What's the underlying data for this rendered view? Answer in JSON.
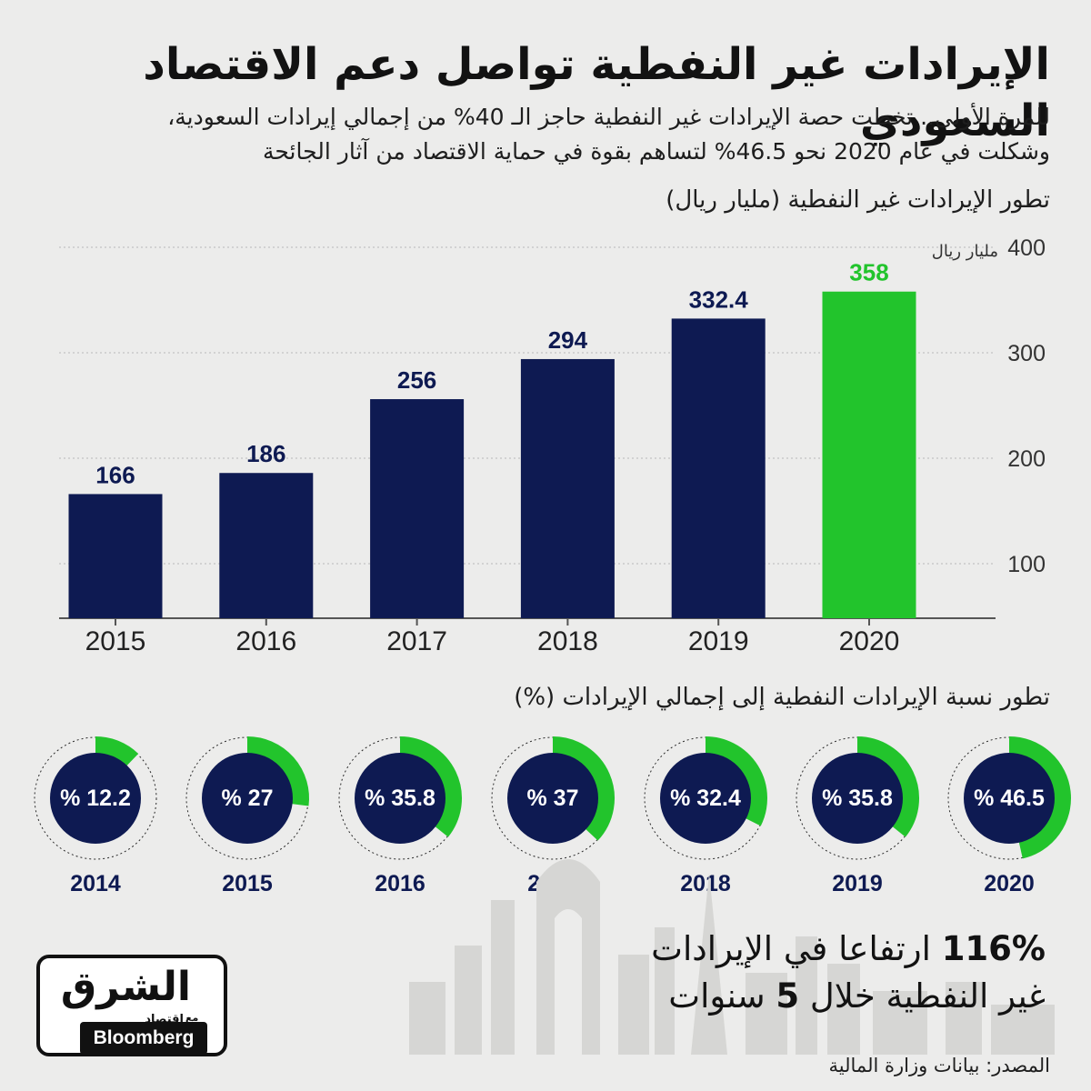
{
  "header": {
    "title": "الإيرادات غير النفطية تواصل دعم الاقتصاد السعودي",
    "subtitle_line1": "للمرة الأولى.. تخطت حصة الإيرادات غير النفطية حاجز الـ 40% من إجمالي إيرادات السعودية،",
    "subtitle_line2": "وشكلت في عام 2020 نحو 46.5% لتساهم بقوة في حماية الاقتصاد من آثار الجائحة"
  },
  "bar_section_title": "تطور الإيرادات غير النفطية (مليار ريال)",
  "donut_section_title": "تطور نسبة الإيرادات النفطية إلى إجمالي الإيرادات (%)",
  "highlight": {
    "pct": "116%",
    "line1_rest": "ارتفاعا في الإيرادات",
    "line2_start": "غير النفطية خلال",
    "num": "5",
    "line2_end": "سنوات"
  },
  "logo": {
    "brand": "الشرق",
    "sub_brand": "اقتصاد",
    "with": "مع",
    "bloomberg": "Bloomberg"
  },
  "source": "المصدر: بيانات وزارة المالية",
  "colors": {
    "navy": "#0e1a52",
    "green": "#22c42c",
    "background": "#ececeb"
  },
  "chart_data": [
    {
      "type": "bar",
      "categories": [
        "2015",
        "2016",
        "2017",
        "2018",
        "2019",
        "2020"
      ],
      "values": [
        166,
        186,
        256,
        294,
        332.4,
        358
      ],
      "value_labels": [
        "166",
        "186",
        "256",
        "294",
        "332.4",
        "358"
      ],
      "highlight_category": "2020",
      "yunit": "مليار ريال",
      "yticks": [
        100,
        200,
        300,
        400
      ],
      "ylim": [
        70,
        400
      ],
      "grid": true,
      "y_axis_side": "right"
    },
    {
      "type": "pie",
      "subtype": "donut",
      "categories": [
        "2014",
        "2015",
        "2016",
        "2017",
        "2018",
        "2019",
        "2020"
      ],
      "values": [
        12.2,
        27,
        35.8,
        37,
        32.4,
        35.8,
        46.5
      ],
      "value_labels": [
        "% 12.2",
        "% 27",
        "% 35.8",
        "% 37",
        "% 32.4",
        "% 35.8",
        "% 46.5"
      ],
      "unit": "%"
    }
  ]
}
